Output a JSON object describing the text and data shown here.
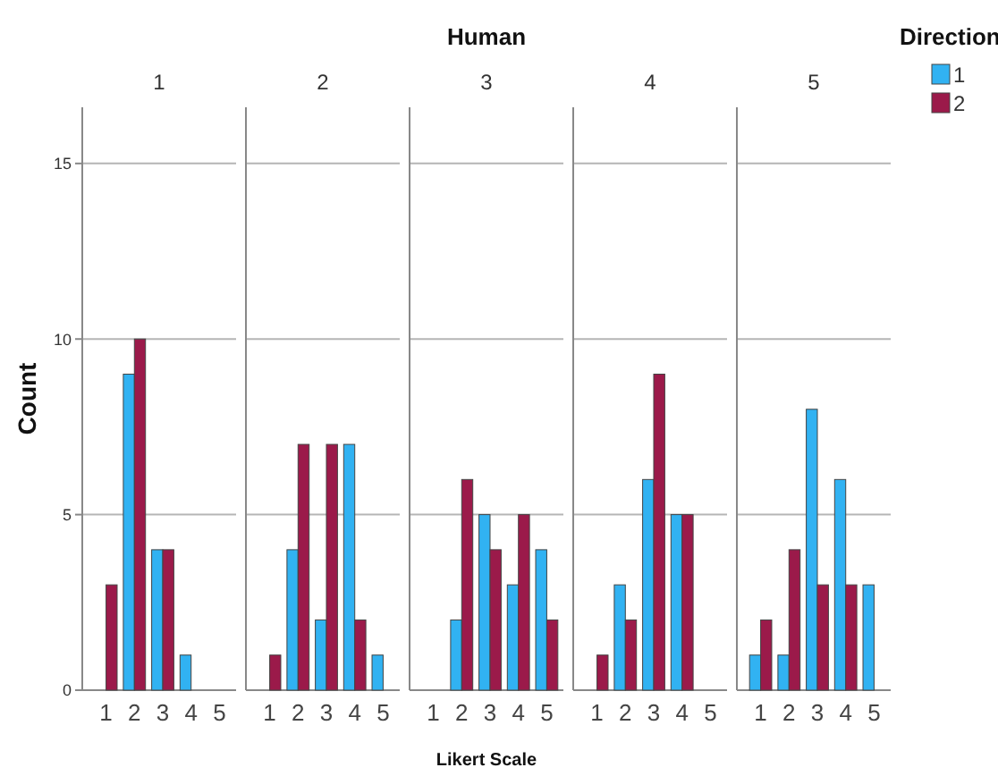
{
  "chart_data": [
    {
      "type": "bar",
      "title": "1",
      "ylabel": "Count",
      "annotations": [
        "Human"
      ],
      "categories": [
        "1",
        "2",
        "3",
        "4",
        "5"
      ],
      "ylim": [
        0,
        16.6
      ],
      "yticks": [
        0,
        5,
        10,
        15
      ],
      "grid": "y",
      "legend": false,
      "series": [
        {
          "color": "#31b2f2",
          "values": [
            0,
            9,
            4,
            1,
            0
          ]
        },
        {
          "color": "#9b1a4a",
          "values": [
            3,
            10,
            4,
            0,
            0
          ]
        }
      ]
    },
    {
      "type": "bar",
      "title": "2",
      "categories": [
        "1",
        "2",
        "3",
        "4",
        "5"
      ],
      "ylim": [
        0,
        16.6
      ],
      "yticks": [
        0,
        5,
        10,
        15
      ],
      "grid": "y",
      "legend": false,
      "tick_labels": "x",
      "series": [
        {
          "color": "#31b2f2",
          "values": [
            0,
            4,
            2,
            7,
            1
          ]
        },
        {
          "color": "#9b1a4a",
          "values": [
            1,
            7,
            7,
            2,
            0
          ]
        }
      ]
    },
    {
      "type": "bar",
      "title": "3",
      "xlabel": "Likert Scale",
      "categories": [
        "1",
        "2",
        "3",
        "4",
        "5"
      ],
      "ylim": [
        0,
        16.6
      ],
      "yticks": [
        0,
        5,
        10,
        15
      ],
      "grid": "y",
      "legend": false,
      "tick_labels": "x",
      "series": [
        {
          "color": "#31b2f2",
          "values": [
            0,
            2,
            5,
            3,
            4
          ]
        },
        {
          "color": "#9b1a4a",
          "values": [
            0,
            6,
            4,
            5,
            2
          ]
        }
      ]
    },
    {
      "type": "bar",
      "title": "4",
      "categories": [
        "1",
        "2",
        "3",
        "4",
        "5"
      ],
      "ylim": [
        0,
        16.6
      ],
      "yticks": [
        0,
        5,
        10,
        15
      ],
      "grid": "y",
      "legend": false,
      "tick_labels": "x",
      "series": [
        {
          "color": "#31b2f2",
          "values": [
            0,
            3,
            6,
            5,
            0
          ]
        },
        {
          "color": "#9b1a4a",
          "values": [
            1,
            2,
            9,
            5,
            0
          ]
        }
      ]
    },
    {
      "type": "bar",
      "title": "5",
      "legend_title": "Direction",
      "categories": [
        "1",
        "2",
        "3",
        "4",
        "5"
      ],
      "ylim": [
        0,
        16.6
      ],
      "yticks": [
        0,
        5,
        10,
        15
      ],
      "grid": "y",
      "legend": "top right",
      "tick_labels": "x",
      "series": [
        {
          "name": "1",
          "color": "#31b2f2",
          "values": [
            1,
            1,
            8,
            6,
            3
          ]
        },
        {
          "name": "2",
          "color": "#9b1a4a",
          "values": [
            2,
            4,
            3,
            3,
            0
          ]
        }
      ]
    }
  ]
}
